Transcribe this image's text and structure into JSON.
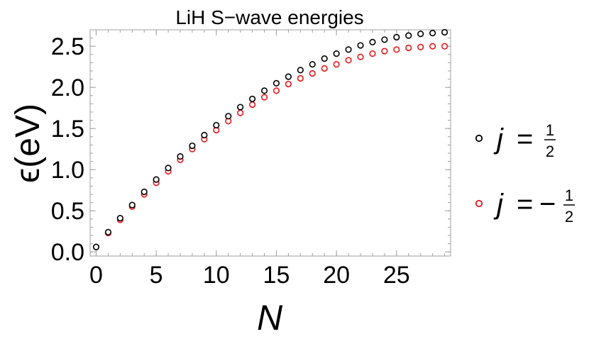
{
  "chart_data": {
    "type": "scatter",
    "title": "LiH S−wave energies",
    "xlabel": "N",
    "ylabel": "ϵ(eV)",
    "xlim": [
      -0.5,
      29.5
    ],
    "ylim": [
      -0.05,
      2.7
    ],
    "x_ticks": [
      {
        "value": 0,
        "label": "0"
      },
      {
        "value": 5,
        "label": "5"
      },
      {
        "value": 10,
        "label": "10"
      },
      {
        "value": 15,
        "label": "15"
      },
      {
        "value": 20,
        "label": "20"
      },
      {
        "value": 25,
        "label": "25"
      }
    ],
    "y_ticks": [
      {
        "value": 0.0,
        "label": "0.0"
      },
      {
        "value": 0.5,
        "label": "0.5"
      },
      {
        "value": 1.0,
        "label": "1.0"
      },
      {
        "value": 1.5,
        "label": "1.5"
      },
      {
        "value": 2.0,
        "label": "2.0"
      },
      {
        "value": 2.5,
        "label": "2.5"
      }
    ],
    "legend": {
      "placement": "right",
      "entries": [
        {
          "symbol": "j",
          "rel": "=",
          "sign": "",
          "num": "1",
          "den": "2"
        },
        {
          "symbol": "j",
          "rel": "=",
          "sign": "−",
          "num": "1",
          "den": "2"
        }
      ]
    },
    "x": [
      0,
      1,
      2,
      3,
      4,
      5,
      6,
      7,
      8,
      9,
      10,
      11,
      12,
      13,
      14,
      15,
      16,
      17,
      18,
      19,
      20,
      21,
      22,
      23,
      24,
      25,
      26,
      27,
      28,
      29
    ],
    "series": [
      {
        "name": "j = 1/2",
        "color": "#000000",
        "values": [
          0.06,
          0.24,
          0.41,
          0.57,
          0.73,
          0.88,
          1.02,
          1.16,
          1.29,
          1.42,
          1.54,
          1.65,
          1.76,
          1.86,
          1.96,
          2.05,
          2.13,
          2.21,
          2.28,
          2.35,
          2.41,
          2.46,
          2.51,
          2.55,
          2.58,
          2.61,
          2.63,
          2.65,
          2.66,
          2.67
        ]
      },
      {
        "name": "j = −1/2",
        "color": "#e8191c",
        "values": [
          0.06,
          0.23,
          0.39,
          0.55,
          0.7,
          0.84,
          0.98,
          1.12,
          1.25,
          1.37,
          1.48,
          1.59,
          1.69,
          1.79,
          1.88,
          1.96,
          2.04,
          2.11,
          2.17,
          2.23,
          2.28,
          2.33,
          2.37,
          2.41,
          2.44,
          2.46,
          2.48,
          2.49,
          2.5,
          2.5
        ]
      }
    ]
  }
}
